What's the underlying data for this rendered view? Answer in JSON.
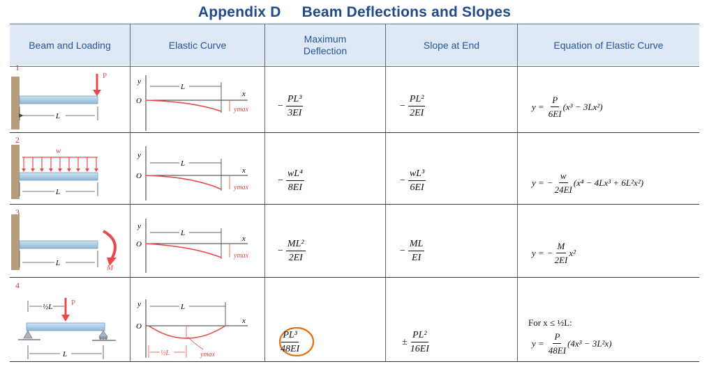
{
  "title": {
    "appendix": "Appendix D",
    "text": "Beam Deflections and Slopes"
  },
  "headers": {
    "beam": "Beam and Loading",
    "curve": "Elastic Curve",
    "maxdef_1": "Maximum",
    "maxdef_2": "Deflection",
    "slope": "Slope at End",
    "equation": "Equation of Elastic Curve"
  },
  "rows": [
    {
      "num": "1",
      "load_label": "P",
      "span_label": "L",
      "curve": {
        "y": "y",
        "o": "O",
        "L": "L",
        "x": "x",
        "ymax": "ymax"
      },
      "deflection": {
        "sign": "−",
        "num": "PL³",
        "den": "3EI"
      },
      "slope": {
        "sign": "−",
        "num": "PL²",
        "den": "2EI"
      },
      "equation": {
        "lhs": "y =",
        "sign": "",
        "num": "P",
        "den": "6EI",
        "rest": "(x³ − 3Lx²)"
      }
    },
    {
      "num": "2",
      "load_label": "w",
      "span_label": "L",
      "curve": {
        "y": "y",
        "o": "O",
        "L": "L",
        "x": "x",
        "ymax": "ymax"
      },
      "deflection": {
        "sign": "−",
        "num": "wL⁴",
        "den": "8EI"
      },
      "slope": {
        "sign": "−",
        "num": "wL³",
        "den": "6EI"
      },
      "equation": {
        "lhs": "y =",
        "sign": "−",
        "num": "w",
        "den": "24EI",
        "rest": "(x⁴ − 4Lx³ + 6L²x²)"
      }
    },
    {
      "num": "3",
      "load_label": "M",
      "span_label": "L",
      "curve": {
        "y": "y",
        "o": "O",
        "L": "L",
        "x": "x",
        "ymax": "ymax"
      },
      "deflection": {
        "sign": "−",
        "num": "ML²",
        "den": "2EI"
      },
      "slope": {
        "sign": "−",
        "num": "ML",
        "den": "EI"
      },
      "equation": {
        "lhs": "y =",
        "sign": "−",
        "num": "M",
        "den": "2EI",
        "rest": "x²"
      }
    },
    {
      "num": "4",
      "load_label": "P",
      "half_label": "½L",
      "span_label": "L",
      "curve": {
        "y": "y",
        "o": "O",
        "L": "L",
        "x": "x",
        "ymax": "ymax",
        "half": "½L"
      },
      "deflection": {
        "sign": "−",
        "num": "PL³",
        "den": "48EI"
      },
      "slope": {
        "sign": "±",
        "num": "PL²",
        "den": "16EI"
      },
      "equation": {
        "condition": "For x ≤ ½L:",
        "lhs": "y =",
        "sign": "",
        "num": "P",
        "den": "48EI",
        "rest": "(4x³ − 3L²x)"
      }
    }
  ]
}
